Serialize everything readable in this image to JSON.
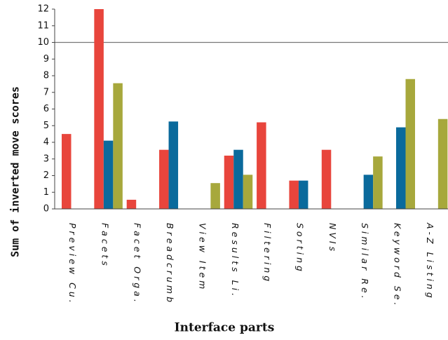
{
  "chart_data": {
    "type": "bar",
    "xlabel": "Interface parts",
    "ylabel": "Sum of inverted move scores",
    "categories": [
      "Preview Cu.",
      "Facets",
      "Facet Orga.",
      "Breadcrumb",
      "View Item",
      "Results Li.",
      "Filtering",
      "Sorting",
      "NVIs",
      "Similar Re.",
      "Keyword Se.",
      "A-Z Listing"
    ],
    "series": [
      {
        "color": "#e8453c",
        "values": [
          4.5,
          12,
          0.55,
          3.55,
          0,
          3.2,
          5.2,
          1.7,
          3.55,
          0,
          0,
          0
        ]
      },
      {
        "color": "#0a6a9c",
        "values": [
          0,
          4.1,
          0,
          5.25,
          0,
          3.55,
          0,
          1.7,
          0,
          2.05,
          4.9,
          0
        ]
      },
      {
        "color": "#a7a83c",
        "values": [
          0,
          7.55,
          0,
          0,
          1.55,
          2.05,
          0,
          0,
          0,
          3.15,
          7.8,
          5.4
        ]
      }
    ],
    "ylim": [
      0,
      12
    ],
    "yticks": [
      0,
      1,
      2,
      3,
      4,
      5,
      6,
      7,
      8,
      9,
      10,
      11,
      12
    ],
    "reference_line": 10,
    "grid": false
  }
}
